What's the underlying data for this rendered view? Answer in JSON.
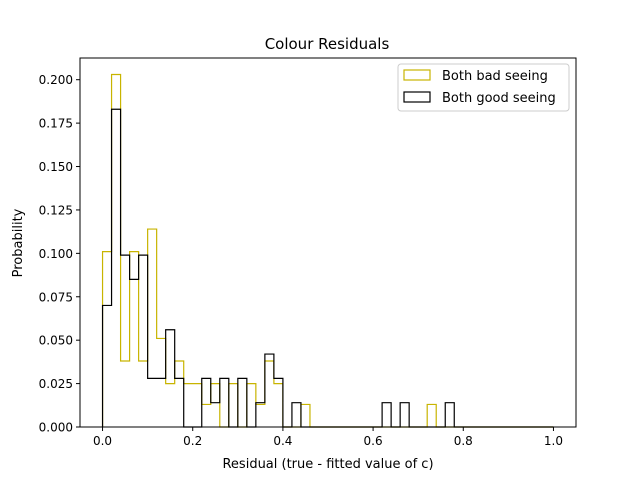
{
  "chart_data": {
    "type": "histogram",
    "title": "Colour Residuals",
    "xlabel": "Residual (true - fitted value of c)",
    "ylabel": "Probability",
    "xlim": [
      -0.05,
      1.05
    ],
    "ylim": [
      0,
      0.2125
    ],
    "xticks": [
      0.0,
      0.2,
      0.4,
      0.6,
      0.8,
      1.0
    ],
    "xtick_labels": [
      "0.0",
      "0.2",
      "0.4",
      "0.6",
      "0.8",
      "1.0"
    ],
    "yticks": [
      0.0,
      0.025,
      0.05,
      0.075,
      0.1,
      0.125,
      0.15,
      0.175,
      0.2
    ],
    "ytick_labels": [
      "0.000",
      "0.025",
      "0.050",
      "0.075",
      "0.100",
      "0.125",
      "0.150",
      "0.175",
      "0.200"
    ],
    "grid": false,
    "legend_position": "top-right",
    "bin_start": 0.0,
    "bin_width": 0.02,
    "series": [
      {
        "name": "Both bad seeing",
        "color": "#c8b400",
        "values": [
          0.101,
          0.203,
          0.038,
          0.101,
          0.038,
          0.114,
          0.051,
          0.025,
          0.038,
          0.025,
          0.025,
          0.013,
          0.025,
          0.0,
          0.025,
          0.0,
          0.025,
          0.013,
          0.038,
          0.025,
          0.0,
          0.0,
          0.013,
          0.0,
          0.0,
          0.0,
          0.0,
          0.0,
          0.0,
          0.0,
          0.0,
          0.0,
          0.0,
          0.0,
          0.0,
          0.0,
          0.013,
          0.0,
          0.0,
          0.0,
          0.0,
          0.0,
          0.0,
          0.0,
          0.0,
          0.0,
          0.0,
          0.0,
          0.0,
          0.0
        ]
      },
      {
        "name": "Both good seeing",
        "color": "#000000",
        "values": [
          0.07,
          0.183,
          0.099,
          0.085,
          0.099,
          0.028,
          0.028,
          0.056,
          0.028,
          0.0,
          0.0,
          0.028,
          0.014,
          0.028,
          0.0,
          0.028,
          0.0,
          0.014,
          0.042,
          0.028,
          0.0,
          0.014,
          0.0,
          0.0,
          0.0,
          0.0,
          0.0,
          0.0,
          0.0,
          0.0,
          0.0,
          0.014,
          0.0,
          0.014,
          0.0,
          0.0,
          0.0,
          0.0,
          0.014,
          0.0,
          0.0,
          0.0,
          0.0,
          0.0,
          0.0,
          0.0,
          0.0,
          0.0,
          0.0,
          0.0
        ]
      }
    ]
  }
}
